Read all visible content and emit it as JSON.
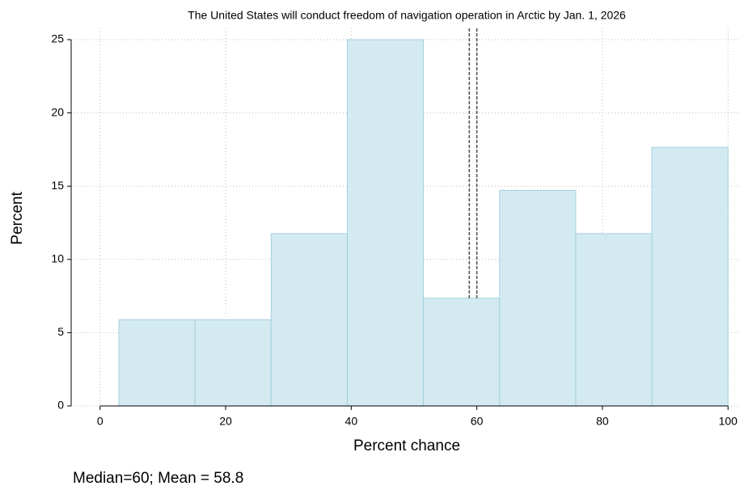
{
  "chart_data": {
    "type": "histogram",
    "title": "The United States will conduct freedom of navigation operation in Arctic by Jan. 1, 2026",
    "xlabel": "Percent chance",
    "ylabel": "Percent",
    "note": "Median=60; Mean = 58.8",
    "bins": [
      3,
      15.125,
      27.25,
      39.375,
      51.5,
      63.625,
      75.75,
      87.875,
      100
    ],
    "values": [
      5.88,
      5.88,
      11.76,
      25,
      7.35,
      14.71,
      11.76,
      17.65
    ],
    "color": "#d4eaf1",
    "edgecolor": "#a3d0df",
    "reference_lines": [
      58.8,
      60
    ],
    "xlim": [
      -4.6,
      101.9
    ],
    "ylim": [
      0,
      25
    ],
    "xticks": [
      0,
      20,
      40,
      60,
      80,
      100
    ],
    "yticks": [
      0,
      5,
      10,
      15,
      20,
      25
    ],
    "grid": true
  }
}
